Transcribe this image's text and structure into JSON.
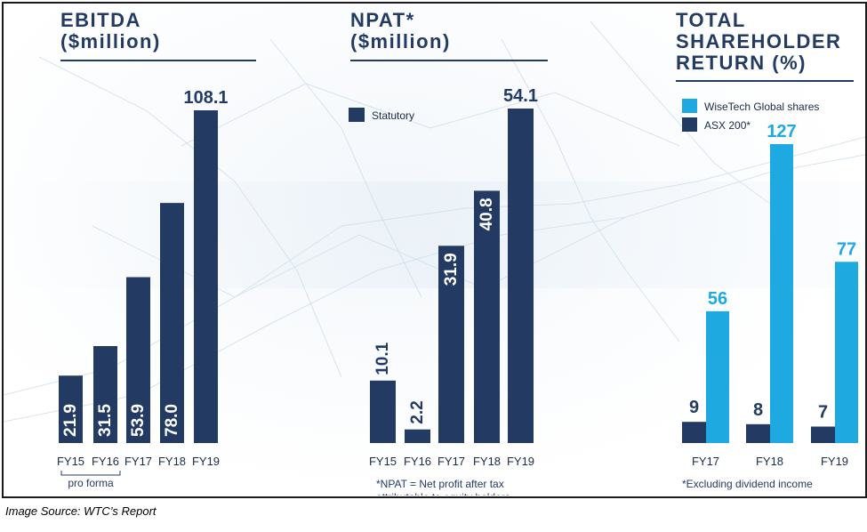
{
  "chart_data": [
    {
      "type": "bar",
      "title": "EBITDA",
      "subtitle": "($million)",
      "categories": [
        "FY15",
        "FY16",
        "FY17",
        "FY18",
        "FY19"
      ],
      "values": [
        21.9,
        31.5,
        53.9,
        78.0,
        108.1
      ],
      "value_labels": [
        "21.9",
        "31.5",
        "53.9",
        "78.0",
        "108.1"
      ],
      "bracket_label": "pro forma",
      "bracket_categories": [
        "FY15",
        "FY16"
      ],
      "ylim": [
        0,
        108.1
      ]
    },
    {
      "type": "bar",
      "title": "NPAT*",
      "subtitle": "($million)",
      "categories": [
        "FY15",
        "FY16",
        "FY17",
        "FY18",
        "FY19"
      ],
      "series": [
        {
          "name": "Statutory",
          "values": [
            10.1,
            2.2,
            31.9,
            40.8,
            54.1
          ]
        }
      ],
      "value_labels": [
        "10.1",
        "2.2",
        "31.9",
        "40.8",
        "54.1"
      ],
      "legend": "top-left",
      "footnote": "*NPAT = Net profit after tax attributable to equity holders",
      "ylim": [
        0,
        54.1
      ]
    },
    {
      "type": "bar",
      "title": "TOTAL SHAREHOLDER RETURN (%)",
      "title_lines": [
        "TOTAL",
        "SHAREHOLDER",
        "RETURN (%)"
      ],
      "categories": [
        "FY17",
        "FY18",
        "FY19"
      ],
      "series": [
        {
          "name": "WiseTech Global shares",
          "values": [
            56,
            127,
            77
          ]
        },
        {
          "name": "ASX 200*",
          "values": [
            9,
            8,
            7
          ]
        }
      ],
      "legend": "top-left",
      "footnote": "*Excluding dividend income",
      "ylim": [
        0,
        127
      ]
    }
  ],
  "colors": {
    "navy": "#233b63",
    "cyan": "#1ea9e1"
  },
  "caption": "Image Source: WTC’s Report"
}
